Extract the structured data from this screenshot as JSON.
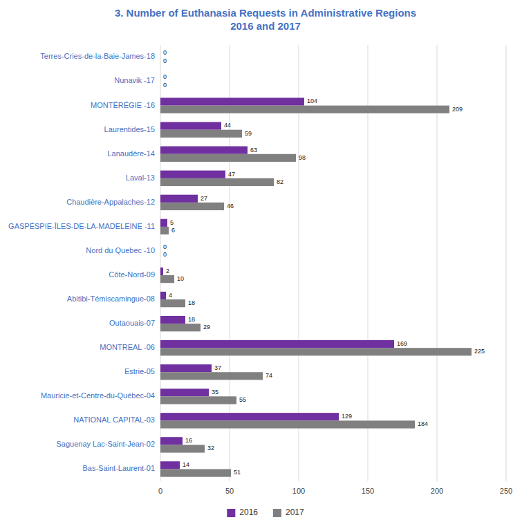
{
  "chart_data": {
    "type": "bar",
    "orientation": "horizontal",
    "title": "3. Number of Euthanasia Requests in Administrative Regions\n2016 and 2017",
    "categories": [
      "Terres-Cries-de-la-Baie-James-18",
      "Nunavik -17",
      "MONTÉRÉGIE -16",
      "Laurentides-15",
      "Lanaudère-14",
      "Laval-13",
      "Chaudière-Appalaches-12",
      "GASPÉSPIE-ÎLES-DE-LA-MADELEINE -11",
      "Nord du Quebec -10",
      "Côte-Nord-09",
      "Abitibi-Témiscamingue-08",
      "Outaouais-07",
      "MONTREAL -06",
      "Estrie-05",
      "Mauricie-et-Centre-du-Québec-04",
      "NATIONAL CAPITAL-03",
      "Saguenay Lac-Saint-Jean-02",
      "Bas-Saint-Laurent-01"
    ],
    "series": [
      {
        "name": "2016",
        "color": "#7030A0",
        "values": [
          0,
          0,
          104,
          44,
          63,
          47,
          27,
          5,
          0,
          2,
          4,
          18,
          169,
          37,
          35,
          129,
          16,
          14
        ]
      },
      {
        "name": "2017",
        "color": "#808080",
        "values": [
          0,
          0,
          209,
          59,
          98,
          82,
          46,
          6,
          0,
          10,
          18,
          29,
          225,
          74,
          55,
          184,
          32,
          51
        ]
      }
    ],
    "xlim": [
      0,
      250
    ],
    "xticks": [
      0,
      50,
      100,
      150,
      200,
      250
    ],
    "grid": true,
    "legend": "bottom",
    "data_labels": true
  }
}
